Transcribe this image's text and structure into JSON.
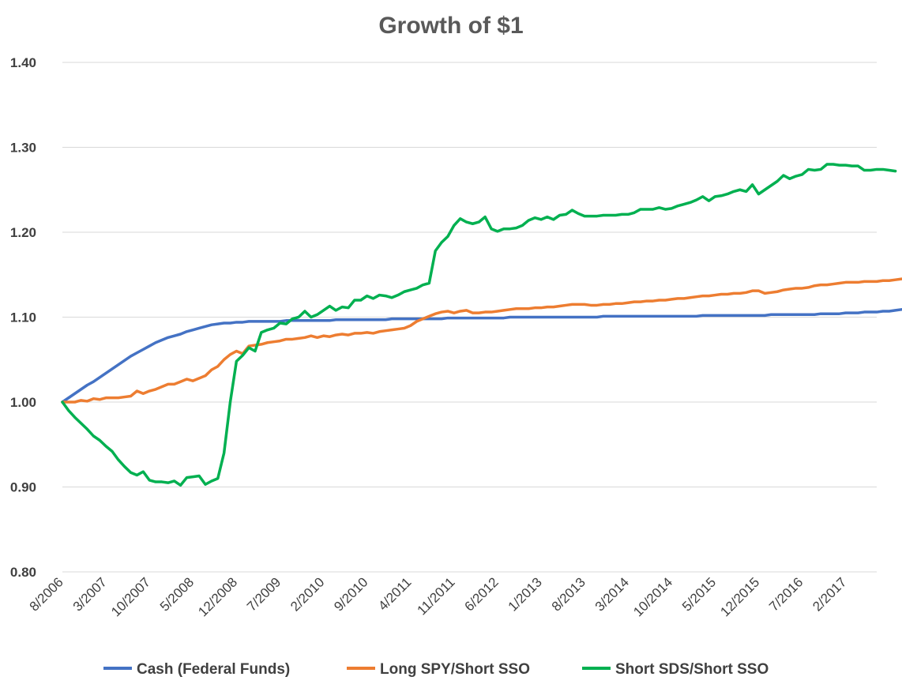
{
  "chart_data": {
    "type": "line",
    "title": "Growth of $1",
    "xlabel": "",
    "ylabel": "",
    "ylim": [
      0.8,
      1.4
    ],
    "yticks": [
      "0.80",
      "0.90",
      "1.00",
      "1.10",
      "1.20",
      "1.30",
      "1.40"
    ],
    "ytick_values": [
      0.8,
      0.9,
      1.0,
      1.1,
      1.2,
      1.3,
      1.4
    ],
    "xticks": [
      "8/2006",
      "3/2007",
      "10/2007",
      "5/2008",
      "12/2008",
      "7/2009",
      "2/2010",
      "9/2010",
      "4/2011",
      "11/2011",
      "6/2012",
      "1/2013",
      "8/2013",
      "3/2014",
      "10/2014",
      "5/2015",
      "12/2015",
      "7/2016",
      "2/2017"
    ],
    "grid": true,
    "legend_position": "bottom",
    "x_start": "8/2006",
    "x_end": "7/2017",
    "series": [
      {
        "name": "Cash (Federal Funds)",
        "color": "#4472c4",
        "values": [
          1.0,
          1.005,
          1.01,
          1.015,
          1.02,
          1.024,
          1.029,
          1.034,
          1.039,
          1.044,
          1.049,
          1.054,
          1.058,
          1.062,
          1.066,
          1.07,
          1.073,
          1.076,
          1.078,
          1.08,
          1.083,
          1.085,
          1.087,
          1.089,
          1.091,
          1.092,
          1.093,
          1.093,
          1.094,
          1.094,
          1.095,
          1.095,
          1.095,
          1.095,
          1.095,
          1.095,
          1.096,
          1.096,
          1.096,
          1.096,
          1.096,
          1.096,
          1.096,
          1.096,
          1.097,
          1.097,
          1.097,
          1.097,
          1.097,
          1.097,
          1.097,
          1.097,
          1.097,
          1.098,
          1.098,
          1.098,
          1.098,
          1.098,
          1.098,
          1.098,
          1.098,
          1.098,
          1.099,
          1.099,
          1.099,
          1.099,
          1.099,
          1.099,
          1.099,
          1.099,
          1.099,
          1.099,
          1.1,
          1.1,
          1.1,
          1.1,
          1.1,
          1.1,
          1.1,
          1.1,
          1.1,
          1.1,
          1.1,
          1.1,
          1.1,
          1.1,
          1.1,
          1.101,
          1.101,
          1.101,
          1.101,
          1.101,
          1.101,
          1.101,
          1.101,
          1.101,
          1.101,
          1.101,
          1.101,
          1.101,
          1.101,
          1.101,
          1.101,
          1.102,
          1.102,
          1.102,
          1.102,
          1.102,
          1.102,
          1.102,
          1.102,
          1.102,
          1.102,
          1.102,
          1.103,
          1.103,
          1.103,
          1.103,
          1.103,
          1.103,
          1.103,
          1.103,
          1.104,
          1.104,
          1.104,
          1.104,
          1.105,
          1.105,
          1.105,
          1.106,
          1.106,
          1.106,
          1.107,
          1.107,
          1.108,
          1.109,
          1.11,
          1.111,
          1.112
        ]
      },
      {
        "name": "Long SPY/Short SSO",
        "color": "#ed7d31",
        "values": [
          1.0,
          1.0,
          1.0,
          1.002,
          1.001,
          1.004,
          1.003,
          1.005,
          1.005,
          1.005,
          1.006,
          1.007,
          1.013,
          1.01,
          1.013,
          1.015,
          1.018,
          1.021,
          1.021,
          1.024,
          1.027,
          1.025,
          1.028,
          1.031,
          1.038,
          1.042,
          1.05,
          1.056,
          1.06,
          1.057,
          1.066,
          1.067,
          1.068,
          1.07,
          1.071,
          1.072,
          1.074,
          1.074,
          1.075,
          1.076,
          1.078,
          1.076,
          1.078,
          1.077,
          1.079,
          1.08,
          1.079,
          1.081,
          1.081,
          1.082,
          1.081,
          1.083,
          1.084,
          1.085,
          1.086,
          1.087,
          1.09,
          1.095,
          1.098,
          1.101,
          1.104,
          1.106,
          1.107,
          1.105,
          1.107,
          1.108,
          1.105,
          1.105,
          1.106,
          1.106,
          1.107,
          1.108,
          1.109,
          1.11,
          1.11,
          1.11,
          1.111,
          1.111,
          1.112,
          1.112,
          1.113,
          1.114,
          1.115,
          1.115,
          1.115,
          1.114,
          1.114,
          1.115,
          1.115,
          1.116,
          1.116,
          1.117,
          1.118,
          1.118,
          1.119,
          1.119,
          1.12,
          1.12,
          1.121,
          1.122,
          1.122,
          1.123,
          1.124,
          1.125,
          1.125,
          1.126,
          1.127,
          1.127,
          1.128,
          1.128,
          1.129,
          1.131,
          1.131,
          1.128,
          1.129,
          1.13,
          1.132,
          1.133,
          1.134,
          1.134,
          1.135,
          1.137,
          1.138,
          1.138,
          1.139,
          1.14,
          1.141,
          1.141,
          1.141,
          1.142,
          1.142,
          1.142,
          1.143,
          1.143,
          1.144,
          1.145,
          1.145
        ]
      },
      {
        "name": "Short SDS/Short SSO",
        "color": "#00b050",
        "values": [
          1.0,
          0.99,
          0.982,
          0.975,
          0.968,
          0.96,
          0.955,
          0.948,
          0.942,
          0.932,
          0.924,
          0.917,
          0.914,
          0.918,
          0.908,
          0.906,
          0.906,
          0.905,
          0.907,
          0.902,
          0.911,
          0.912,
          0.913,
          0.903,
          0.907,
          0.91,
          0.94,
          1.0,
          1.048,
          1.055,
          1.064,
          1.06,
          1.082,
          1.085,
          1.087,
          1.093,
          1.092,
          1.098,
          1.1,
          1.107,
          1.1,
          1.103,
          1.108,
          1.113,
          1.108,
          1.112,
          1.111,
          1.12,
          1.12,
          1.125,
          1.122,
          1.126,
          1.125,
          1.123,
          1.126,
          1.13,
          1.132,
          1.134,
          1.138,
          1.14,
          1.178,
          1.188,
          1.195,
          1.208,
          1.216,
          1.212,
          1.21,
          1.212,
          1.218,
          1.204,
          1.201,
          1.204,
          1.204,
          1.205,
          1.208,
          1.214,
          1.217,
          1.215,
          1.218,
          1.215,
          1.22,
          1.221,
          1.226,
          1.222,
          1.219,
          1.219,
          1.219,
          1.22,
          1.22,
          1.22,
          1.221,
          1.221,
          1.223,
          1.227,
          1.227,
          1.227,
          1.229,
          1.227,
          1.228,
          1.231,
          1.233,
          1.235,
          1.238,
          1.242,
          1.237,
          1.242,
          1.243,
          1.245,
          1.248,
          1.25,
          1.248,
          1.256,
          1.245,
          1.25,
          1.255,
          1.26,
          1.267,
          1.263,
          1.266,
          1.268,
          1.274,
          1.273,
          1.274,
          1.28,
          1.28,
          1.279,
          1.279,
          1.278,
          1.278,
          1.273,
          1.273,
          1.274,
          1.274,
          1.273,
          1.272
        ]
      }
    ]
  }
}
